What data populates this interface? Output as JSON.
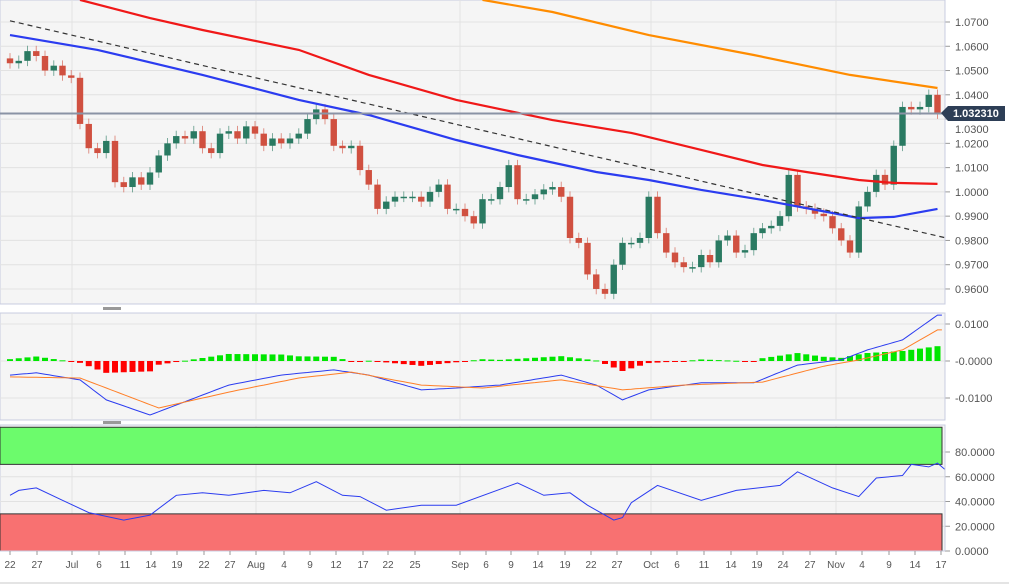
{
  "chart_data": [
    {
      "type": "candlestick",
      "panel": "price",
      "ylim": [
        0.955,
        1.075
      ],
      "y_ticks": [
        "1.0700",
        "1.0600",
        "1.0500",
        "1.0400",
        "1.0300",
        "1.0200",
        "1.0100",
        "1.0000",
        "0.9900",
        "0.9800",
        "0.9700",
        "0.9600"
      ],
      "current_price": "1.032310",
      "closes": [
        1.053,
        1.054,
        1.058,
        1.056,
        1.05,
        1.052,
        1.048,
        1.047,
        1.028,
        1.018,
        1.016,
        1.021,
        1.004,
        1.002,
        1.006,
        1.003,
        1.008,
        1.015,
        1.02,
        1.023,
        1.022,
        1.025,
        1.018,
        1.016,
        1.024,
        1.025,
        1.022,
        1.027,
        1.024,
        1.019,
        1.022,
        1.02,
        1.022,
        1.024,
        1.03,
        1.034,
        1.03,
        1.019,
        1.018,
        1.019,
        1.009,
        1.003,
        0.993,
        0.996,
        0.998,
        0.998,
        0.998,
        0.996,
        1.0,
        1.003,
        0.993,
        0.993,
        0.99,
        0.987,
        0.997,
        0.997,
        1.002,
        1.011,
        0.997,
        0.997,
        0.999,
        1.001,
        1.002,
        0.998,
        0.981,
        0.979,
        0.966,
        0.96,
        0.958,
        0.97,
        0.979,
        0.979,
        0.981,
        0.998,
        0.983,
        0.975,
        0.971,
        0.969,
        0.969,
        0.974,
        0.971,
        0.98,
        0.982,
        0.975,
        0.976,
        0.983,
        0.985,
        0.986,
        0.99,
        1.007,
        0.994,
        0.993,
        0.991,
        0.99,
        0.985,
        0.98,
        0.975,
        0.994,
        1.0,
        1.007,
        1.003,
        1.019,
        1.035,
        1.034,
        1.035,
        1.04,
        1.0323
      ],
      "colors": {
        "up": "#2a7a62",
        "down": "#d05040"
      },
      "overlays": [
        {
          "kind": "moving-average",
          "color": "#2b3cf0",
          "points": [
            [
              0,
              1.0646
            ],
            [
              10,
              1.0585
            ],
            [
              22,
              1.0482
            ],
            [
              33,
              1.0379
            ],
            [
              41,
              1.0317
            ],
            [
              51,
              1.0214
            ],
            [
              58,
              1.0152
            ],
            [
              67,
              1.0082
            ],
            [
              73,
              1.0049
            ],
            [
              79,
              1.0008
            ],
            [
              86,
              0.9967
            ],
            [
              94,
              0.9913
            ],
            [
              97,
              0.9892
            ],
            [
              101,
              0.9897
            ],
            [
              106,
              0.993
            ]
          ]
        },
        {
          "kind": "moving-average",
          "color": "#f01818",
          "points": [
            [
              8,
              1.0791
            ],
            [
              16,
              1.0716
            ],
            [
              22,
              1.0667
            ],
            [
              33,
              1.0585
            ],
            [
              41,
              1.0482
            ],
            [
              51,
              1.0379
            ],
            [
              62,
              1.0296
            ],
            [
              71,
              1.0243
            ],
            [
              79,
              1.0173
            ],
            [
              86,
              1.0111
            ],
            [
              91,
              1.0082
            ],
            [
              97,
              1.0049
            ],
            [
              101,
              1.0037
            ],
            [
              106,
              1.0033
            ]
          ]
        },
        {
          "kind": "moving-average",
          "color": "#ff8c00",
          "points": [
            [
              54,
              1.0791
            ],
            [
              62,
              1.0741
            ],
            [
              73,
              1.0646
            ],
            [
              85,
              1.0564
            ],
            [
              96,
              1.0482
            ],
            [
              106,
              1.0428
            ]
          ]
        },
        {
          "kind": "trendline",
          "style": "dashed",
          "color": "#333333",
          "points": [
            [
              0,
              1.0705
            ],
            [
              107,
              0.981
            ]
          ]
        }
      ]
    },
    {
      "type": "line",
      "panel": "macd",
      "y_ticks": [
        "0.0100",
        "-0.0000",
        "-0.0100"
      ],
      "series": [
        {
          "color": "#2b3cf0",
          "points": [
            [
              0,
              -0.0038
            ],
            [
              3,
              -0.0032
            ],
            [
              8,
              -0.0051
            ],
            [
              11,
              -0.0105
            ],
            [
              16,
              -0.0146
            ],
            [
              19,
              -0.0119
            ],
            [
              25,
              -0.0065
            ],
            [
              31,
              -0.0038
            ],
            [
              37,
              -0.0024
            ],
            [
              41,
              -0.0038
            ],
            [
              47,
              -0.0078
            ],
            [
              51,
              -0.0073
            ],
            [
              56,
              -0.0065
            ],
            [
              63,
              -0.0038
            ],
            [
              67,
              -0.0065
            ],
            [
              70,
              -0.0105
            ],
            [
              73,
              -0.0078
            ],
            [
              79,
              -0.0059
            ],
            [
              85,
              -0.0059
            ],
            [
              90,
              -0.0011
            ],
            [
              95,
              0.0003
            ],
            [
              98,
              0.003
            ],
            [
              102,
              0.0057
            ],
            [
              106,
              0.0124
            ]
          ]
        },
        {
          "color": "#ff7f27",
          "points": [
            [
              0,
              -0.0043
            ],
            [
              8,
              -0.0046
            ],
            [
              17,
              -0.0127
            ],
            [
              25,
              -0.0084
            ],
            [
              33,
              -0.0046
            ],
            [
              39,
              -0.003
            ],
            [
              47,
              -0.0065
            ],
            [
              54,
              -0.0073
            ],
            [
              63,
              -0.0051
            ],
            [
              70,
              -0.0078
            ],
            [
              77,
              -0.0065
            ],
            [
              86,
              -0.0057
            ],
            [
              93,
              -0.0014
            ],
            [
              97,
              0.0003
            ],
            [
              102,
              0.003
            ],
            [
              106,
              0.0084
            ]
          ]
        }
      ],
      "histogram_colors": {
        "positive": "#00e600",
        "negative": "#ff0000"
      }
    },
    {
      "type": "line",
      "panel": "rsi",
      "ylim": [
        0,
        100
      ],
      "y_ticks": [
        "80.0000",
        "60.0000",
        "40.0000",
        "20.0000",
        "0.0000"
      ],
      "bands": [
        {
          "from": 70,
          "to": 100,
          "color": "#6cfb6c"
        },
        {
          "from": 0,
          "to": 30,
          "color": "#f87171"
        }
      ],
      "series": [
        {
          "color": "#2b3cf0",
          "points": [
            [
              0,
              45
            ],
            [
              1,
              49
            ],
            [
              3,
              51
            ],
            [
              6,
              41
            ],
            [
              9,
              31
            ],
            [
              13,
              25
            ],
            [
              16,
              29
            ],
            [
              19,
              45
            ],
            [
              22,
              47
            ],
            [
              25,
              45
            ],
            [
              29,
              49
            ],
            [
              32,
              47
            ],
            [
              35,
              56
            ],
            [
              38,
              45
            ],
            [
              40,
              44
            ],
            [
              43,
              33
            ],
            [
              47,
              37
            ],
            [
              51,
              37
            ],
            [
              58,
              55
            ],
            [
              61,
              45
            ],
            [
              64,
              47
            ],
            [
              66,
              37
            ],
            [
              69,
              25
            ],
            [
              70,
              27
            ],
            [
              71,
              39
            ],
            [
              74,
              53
            ],
            [
              79,
              41
            ],
            [
              83,
              49
            ],
            [
              88,
              53
            ],
            [
              90,
              64
            ],
            [
              94,
              51
            ],
            [
              97,
              44
            ],
            [
              99,
              59
            ],
            [
              102,
              61
            ],
            [
              103,
              70
            ],
            [
              105,
              68
            ],
            [
              106,
              71
            ],
            [
              107,
              65
            ]
          ]
        }
      ]
    }
  ],
  "x_axis": {
    "labels": [
      "22",
      "27",
      "Jul",
      "6",
      "11",
      "14",
      "19",
      "22",
      "27",
      "Aug",
      "4",
      "9",
      "12",
      "17",
      "22",
      "25",
      "Sep",
      "6",
      "9",
      "14",
      "19",
      "22",
      "27",
      "Oct",
      "6",
      "11",
      "14",
      "19",
      "24",
      "27",
      "Nov",
      "4",
      "9",
      "14",
      "17"
    ]
  }
}
